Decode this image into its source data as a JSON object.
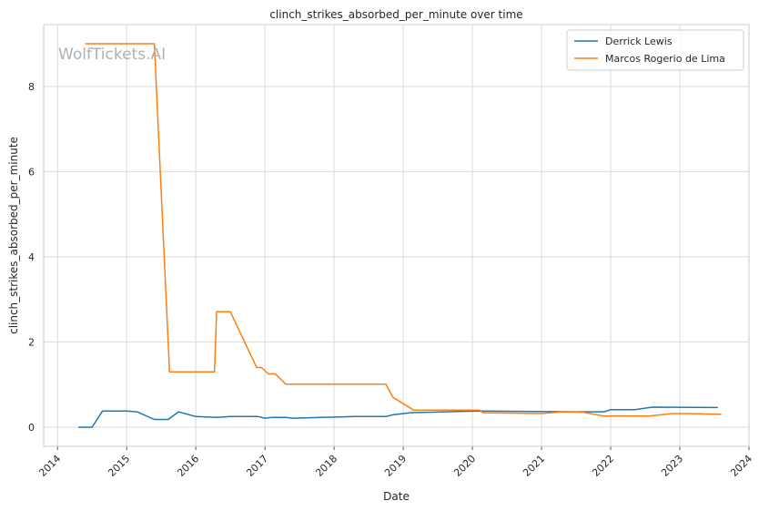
{
  "chart_data": {
    "type": "line",
    "title": "clinch_strikes_absorbed_per_minute over time",
    "xlabel": "Date",
    "ylabel": "clinch_strikes_absorbed_per_minute",
    "watermark": "WolfTickets.AI",
    "grid": true,
    "legend_position": "top-right",
    "xlim": [
      2013.8,
      2024.0
    ],
    "ylim": [
      -0.45,
      9.45
    ],
    "x_ticks": [
      2014,
      2015,
      2016,
      2017,
      2018,
      2019,
      2020,
      2021,
      2022,
      2023,
      2024
    ],
    "y_ticks": [
      0,
      2,
      4,
      6,
      8
    ],
    "series": [
      {
        "name": "Derrick Lewis",
        "color": "#1f77b4",
        "x": [
          2014.3,
          2014.5,
          2014.65,
          2015.0,
          2015.15,
          2015.4,
          2015.6,
          2015.75,
          2016.0,
          2016.3,
          2016.5,
          2016.9,
          2017.0,
          2017.1,
          2017.3,
          2017.4,
          2018.3,
          2018.75,
          2018.85,
          2019.1,
          2020.1,
          2021.5,
          2021.9,
          2022.0,
          2022.35,
          2022.6,
          2023.55
        ],
        "y": [
          0.0,
          0.0,
          0.38,
          0.38,
          0.36,
          0.18,
          0.18,
          0.36,
          0.25,
          0.23,
          0.25,
          0.25,
          0.21,
          0.23,
          0.23,
          0.21,
          0.25,
          0.25,
          0.29,
          0.34,
          0.38,
          0.36,
          0.36,
          0.41,
          0.41,
          0.47,
          0.46
        ]
      },
      {
        "name": "Marcos Rogerio de Lima",
        "color": "#ff7f0e",
        "x": [
          2014.4,
          2015.4,
          2015.62,
          2016.27,
          2016.3,
          2016.5,
          2016.88,
          2016.95,
          2017.05,
          2017.15,
          2017.3,
          2018.75,
          2018.85,
          2019.15,
          2020.1,
          2020.15,
          2021.0,
          2021.3,
          2021.6,
          2021.9,
          2022.55,
          2022.9,
          2023.1,
          2023.6
        ],
        "y": [
          9.0,
          9.0,
          1.3,
          1.3,
          2.71,
          2.71,
          1.4,
          1.4,
          1.25,
          1.25,
          1.01,
          1.01,
          0.7,
          0.4,
          0.4,
          0.34,
          0.32,
          0.36,
          0.35,
          0.26,
          0.26,
          0.32,
          0.32,
          0.3
        ]
      }
    ]
  }
}
